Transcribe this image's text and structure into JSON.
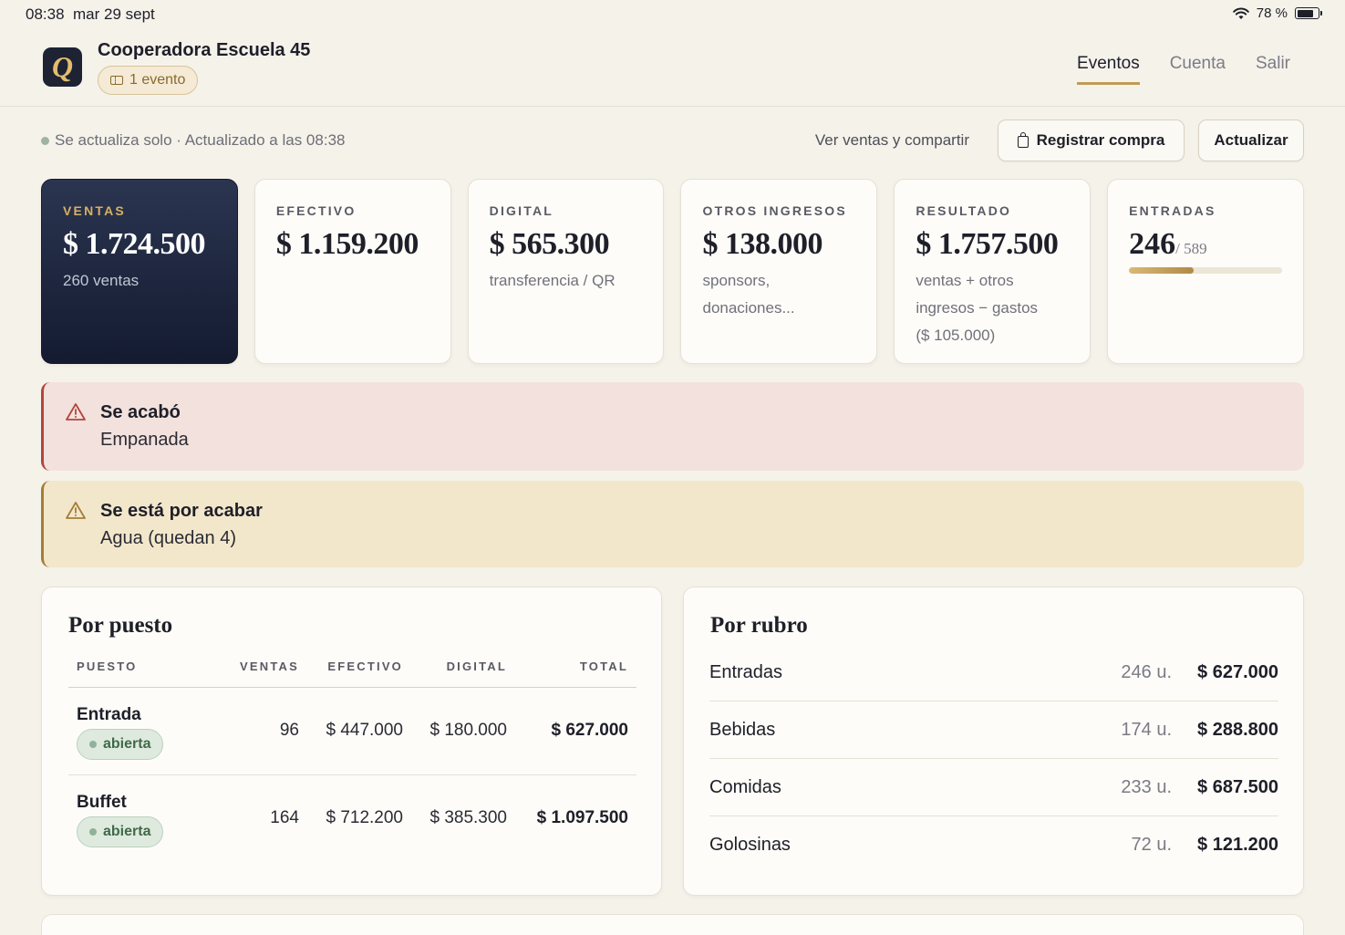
{
  "status_bar": {
    "time": "08:38",
    "date": "mar 29 sept",
    "battery_text": "78 %",
    "battery_level": 0.78
  },
  "header": {
    "logo_letter": "Q",
    "title": "Cooperadora Escuela 45",
    "event_chip": "1 evento",
    "nav": [
      {
        "label": "Eventos",
        "active": true
      },
      {
        "label": "Cuenta",
        "active": false
      },
      {
        "label": "Salir",
        "active": false
      }
    ]
  },
  "toolbar": {
    "live_text": "Se actualiza solo · Actualizado a las 08:38",
    "share_link": "Ver ventas y compartir",
    "register_button": "Registrar compra",
    "update_button": "Actualizar"
  },
  "cards": {
    "ventas": {
      "label": "VENTAS",
      "value": "$ 1.724.500",
      "sub": "260 ventas"
    },
    "efectivo": {
      "label": "EFECTIVO",
      "value": "$ 1.159.200"
    },
    "digital": {
      "label": "DIGITAL",
      "value": "$ 565.300",
      "sub": "transferencia / QR"
    },
    "otros": {
      "label": "OTROS INGRESOS",
      "value": "$ 138.000",
      "sub1": "sponsors,",
      "sub2": "donaciones..."
    },
    "resultado": {
      "label": "RESULTADO",
      "value": "$ 1.757.500",
      "sub1": "ventas + otros",
      "sub2": "ingresos − gastos",
      "sub3": "($ 105.000)"
    },
    "entradas": {
      "label": "ENTRADAS",
      "sold": "246",
      "total": "/ 589",
      "progress": 0.42
    }
  },
  "alerts": [
    {
      "type": "error",
      "title": "Se acabó",
      "body": "Empanada"
    },
    {
      "type": "warning",
      "title": "Se está por acabar",
      "body": "Agua (quedan 4)"
    }
  ],
  "por_puesto": {
    "title": "Por puesto",
    "columns": [
      "PUESTO",
      "VENTAS",
      "EFECTIVO",
      "DIGITAL",
      "TOTAL"
    ],
    "rows": [
      {
        "name": "Entrada",
        "status": "abierta",
        "ventas": "96",
        "efectivo": "$ 447.000",
        "digital": "$ 180.000",
        "total": "$ 627.000"
      },
      {
        "name": "Buffet",
        "status": "abierta",
        "ventas": "164",
        "efectivo": "$ 712.200",
        "digital": "$ 385.300",
        "total": "$ 1.097.500"
      }
    ]
  },
  "por_rubro": {
    "title": "Por rubro",
    "rows": [
      {
        "name": "Entradas",
        "units": "246 u.",
        "total": "$ 627.000"
      },
      {
        "name": "Bebidas",
        "units": "174 u.",
        "total": "$ 288.800"
      },
      {
        "name": "Comidas",
        "units": "233 u.",
        "total": "$ 687.500"
      },
      {
        "name": "Golosinas",
        "units": "72 u.",
        "total": "$ 121.200"
      }
    ]
  },
  "colors": {
    "accent": "#c19a55",
    "dark_card": "#1a2238",
    "error": "#b2453c",
    "warning": "#a47d36",
    "success": "#3f6a49"
  },
  "icons": [
    "wifi-icon",
    "battery-icon",
    "ticket-icon",
    "shopping-bag-icon",
    "warning-triangle-icon",
    "status-dot-icon"
  ]
}
